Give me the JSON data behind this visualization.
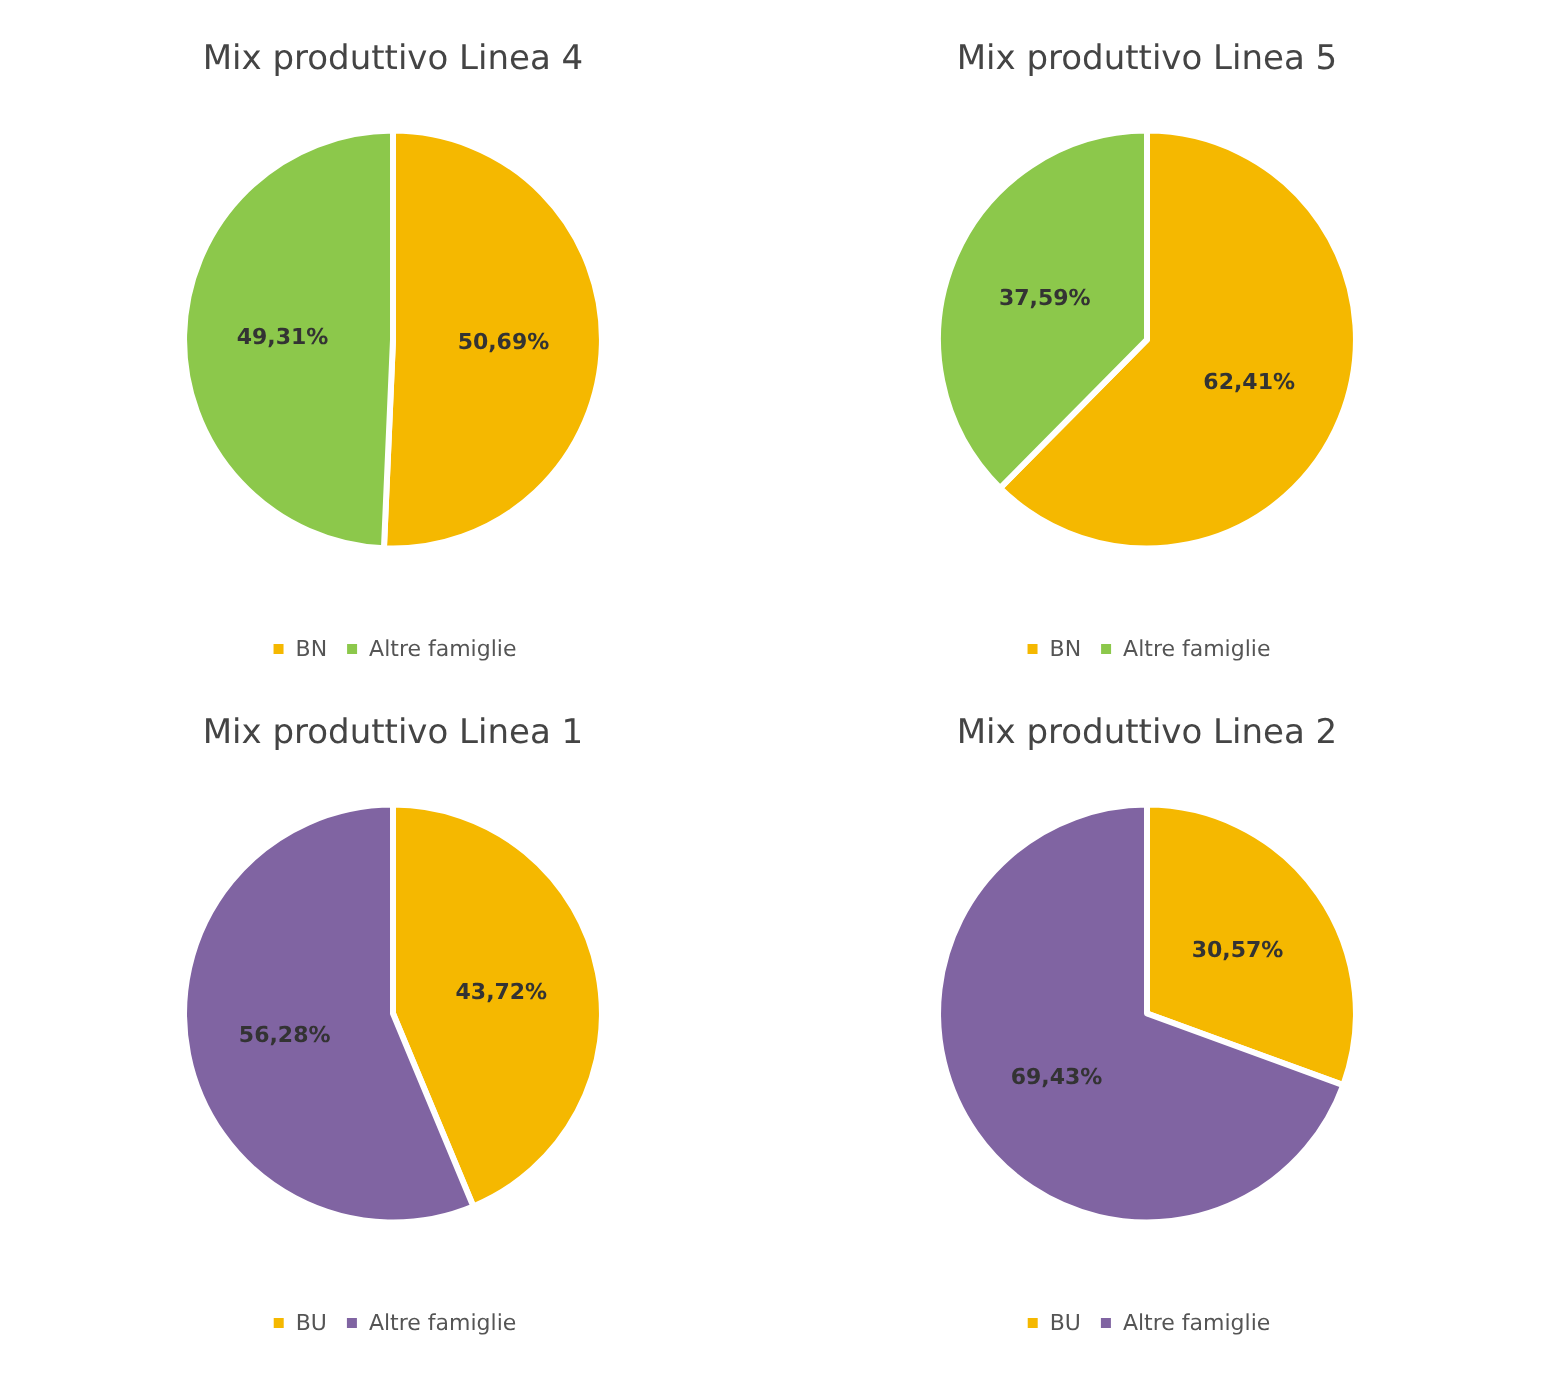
{
  "chart_data": [
    {
      "type": "pie",
      "title": "Mix produttivo Linea 4",
      "categories": [
        "BN",
        "Altre famiglie"
      ],
      "values": [
        50.69,
        49.31
      ],
      "colors": [
        "#f5b800",
        "#8cc84b"
      ],
      "value_labels": [
        "50,69%",
        "49,31%"
      ],
      "legend": "bottom"
    },
    {
      "type": "pie",
      "title": "Mix produttivo Linea 5",
      "categories": [
        "BN",
        "Altre famiglie"
      ],
      "values": [
        62.41,
        37.59
      ],
      "colors": [
        "#f5b800",
        "#8cc84b"
      ],
      "value_labels": [
        "62,41%",
        "37,59%"
      ],
      "legend": "bottom"
    },
    {
      "type": "pie",
      "title": "Mix produttivo Linea 1",
      "categories": [
        "BU",
        "Altre famiglie"
      ],
      "values": [
        43.72,
        56.28
      ],
      "colors": [
        "#f5b800",
        "#8064a2"
      ],
      "value_labels": [
        "43,72%",
        "56,28%"
      ],
      "legend": "bottom"
    },
    {
      "type": "pie",
      "title": "Mix produttivo Linea 2",
      "categories": [
        "BU",
        "Altre famiglie"
      ],
      "values": [
        30.57,
        69.43
      ],
      "colors": [
        "#f5b800",
        "#8064a2"
      ],
      "value_labels": [
        "30,57%",
        "69,43%"
      ],
      "legend": "bottom"
    }
  ]
}
